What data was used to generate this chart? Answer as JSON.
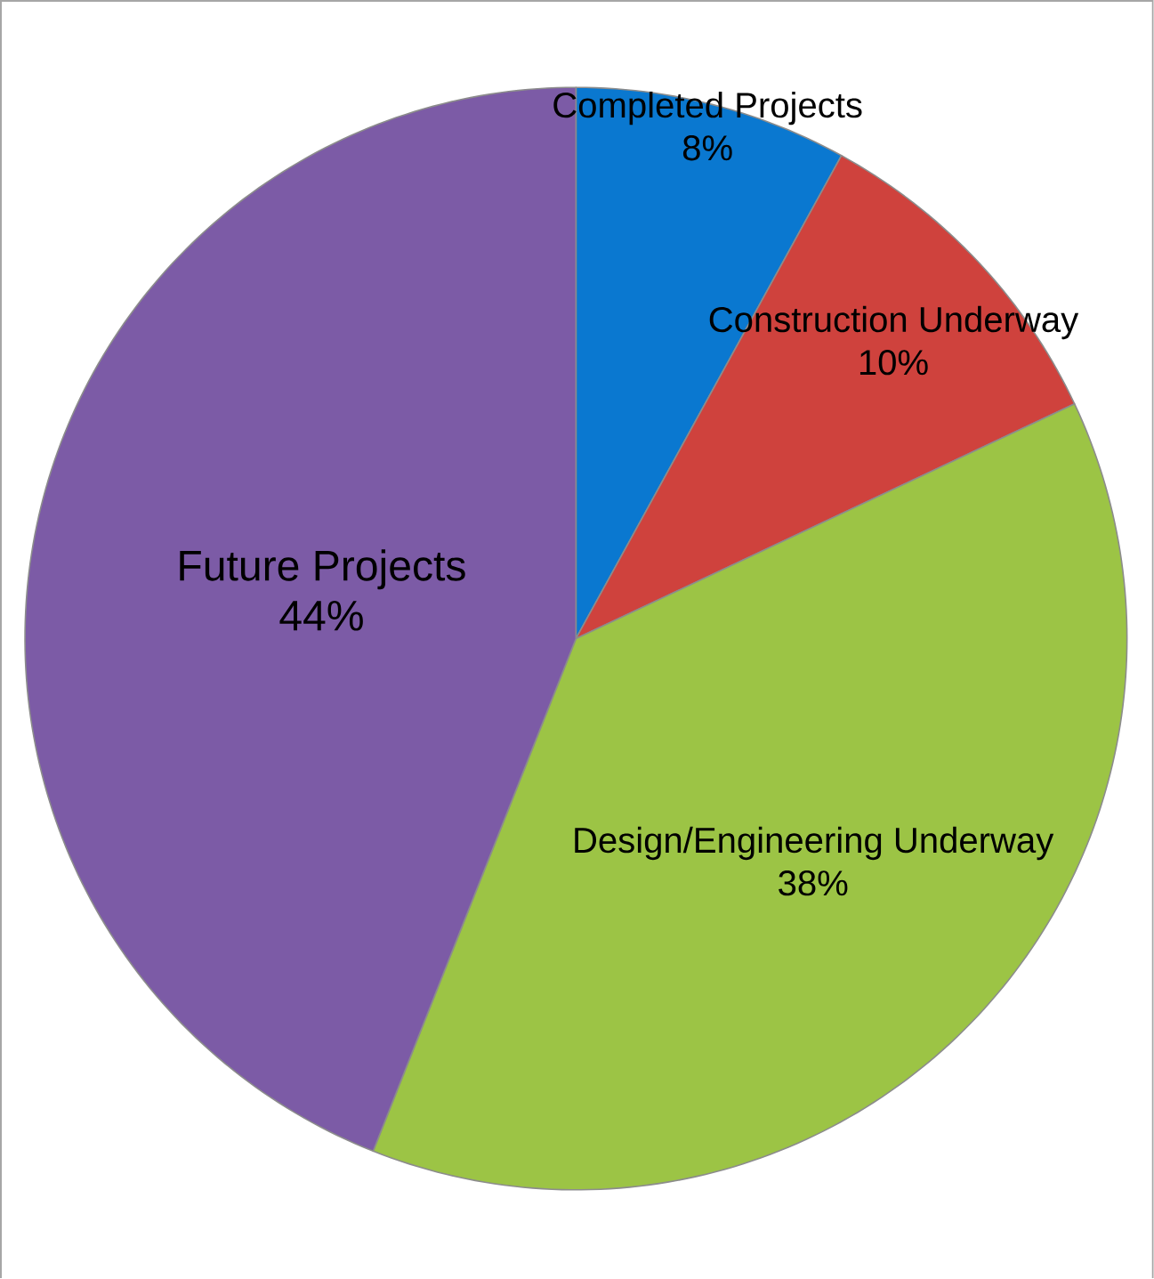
{
  "chart_data": {
    "type": "pie",
    "categories": [
      "Completed Projects",
      "Construction Underway",
      "Design/Engineering Underway",
      "Future Projects"
    ],
    "values": [
      8,
      10,
      38,
      44
    ],
    "value_labels": [
      "8%",
      "10%",
      "38%",
      "44%"
    ],
    "colors": [
      "#0a78d0",
      "#cf423d",
      "#9cc445",
      "#7c5ba6"
    ]
  }
}
